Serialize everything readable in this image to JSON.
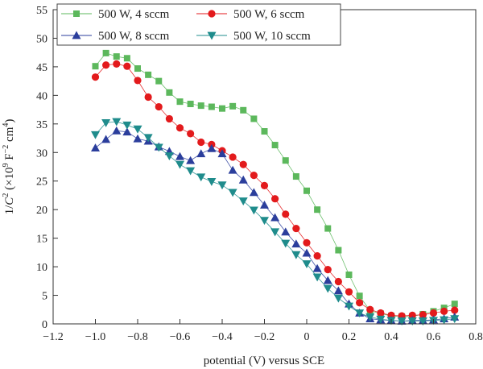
{
  "chart_data": {
    "type": "line",
    "title": "",
    "xlabel": "potential (V) versus SCE",
    "ylabel": {
      "prefix": "1/",
      "var": "C",
      "exp": "2",
      "mid": " (×10",
      "exp2": "9",
      "mid2": " F",
      "exp3": "−2",
      "mid3": " cm",
      "exp4": "4",
      "suffix": ")"
    },
    "xlim": [
      -1.2,
      0.8
    ],
    "ylim": [
      0,
      55
    ],
    "xticks": [
      -1.2,
      -1.0,
      -0.8,
      -0.6,
      -0.4,
      -0.2,
      0,
      0.2,
      0.4,
      0.6,
      0.8
    ],
    "xtick_labels": [
      "−1.2",
      "−1.0",
      "−0.8",
      "−0.6",
      "−0.4",
      "−0.2",
      "0",
      "0.2",
      "0.4",
      "0.6",
      "0.8"
    ],
    "yticks": [
      0,
      5,
      10,
      15,
      20,
      25,
      30,
      35,
      40,
      45,
      50,
      55
    ],
    "ytick_labels": [
      "0",
      "5",
      "10",
      "15",
      "20",
      "25",
      "30",
      "35",
      "40",
      "45",
      "50",
      "55"
    ],
    "grid": false,
    "legend_position": "top",
    "x": [
      -1.0,
      -0.95,
      -0.9,
      -0.85,
      -0.8,
      -0.75,
      -0.7,
      -0.65,
      -0.6,
      -0.55,
      -0.5,
      -0.45,
      -0.4,
      -0.35,
      -0.3,
      -0.25,
      -0.2,
      -0.15,
      -0.1,
      -0.05,
      0.0,
      0.05,
      0.1,
      0.15,
      0.2,
      0.25,
      0.3,
      0.35,
      0.4,
      0.45,
      0.5,
      0.55,
      0.6,
      0.65,
      0.7
    ],
    "series": [
      {
        "name": "500 W, 4 sccm",
        "color": "#5cb85c",
        "marker": "square",
        "values": [
          45.1,
          47.4,
          46.8,
          46.5,
          44.7,
          43.6,
          42.5,
          40.5,
          38.9,
          38.5,
          38.2,
          38.0,
          37.7,
          38.1,
          37.4,
          35.9,
          33.7,
          31.3,
          28.6,
          25.8,
          23.3,
          20.0,
          16.7,
          12.9,
          8.6,
          4.9,
          2.3,
          1.8,
          1.4,
          1.3,
          1.3,
          1.7,
          2.2,
          2.8,
          3.5
        ]
      },
      {
        "name": "500 W, 6 sccm",
        "color": "#e31a1c",
        "marker": "circle",
        "values": [
          43.2,
          45.3,
          45.5,
          45.1,
          42.6,
          39.7,
          38.0,
          35.9,
          34.3,
          33.3,
          31.8,
          31.4,
          30.3,
          29.2,
          27.9,
          26.0,
          24.2,
          21.9,
          19.2,
          16.7,
          14.2,
          11.9,
          9.5,
          7.4,
          5.6,
          3.7,
          2.5,
          1.9,
          1.5,
          1.4,
          1.5,
          1.6,
          1.9,
          2.2,
          2.4
        ]
      },
      {
        "name": "500 W, 8 sccm",
        "color": "#2b3e9c",
        "marker": "triangle-up",
        "values": [
          30.8,
          32.3,
          33.8,
          33.6,
          32.4,
          32.0,
          31.0,
          30.2,
          29.3,
          28.6,
          29.8,
          30.7,
          29.8,
          26.9,
          25.2,
          23.0,
          20.8,
          18.6,
          16.1,
          14.0,
          12.4,
          9.7,
          7.6,
          5.8,
          3.5,
          1.9,
          0.9,
          0.7,
          0.6,
          0.5,
          0.6,
          0.6,
          0.7,
          0.9,
          1.2
        ]
      },
      {
        "name": "500 W, 10 sccm",
        "color": "#1f8c8c",
        "marker": "triangle-down",
        "values": [
          33.1,
          35.2,
          35.4,
          34.8,
          34.1,
          32.6,
          30.9,
          29.4,
          27.9,
          26.8,
          25.7,
          24.9,
          24.3,
          23.0,
          21.5,
          19.9,
          18.1,
          16.1,
          14.1,
          12.1,
          10.5,
          8.2,
          6.2,
          4.5,
          3.1,
          1.9,
          1.2,
          0.8,
          0.6,
          0.5,
          0.5,
          0.5,
          0.6,
          0.7,
          0.9
        ]
      }
    ]
  }
}
